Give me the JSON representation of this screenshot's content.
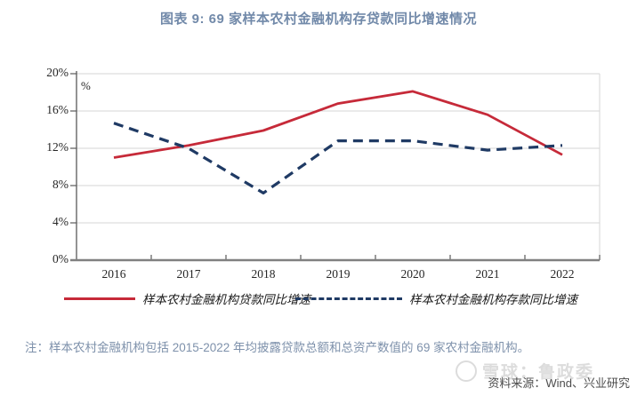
{
  "title": "图表 9: 69 家样本农村金融机构存贷款同比增速情况",
  "chart_data": {
    "type": "line",
    "title": "图表 9: 69 家样本农村金融机构存贷款同比增速情况",
    "categories": [
      "2016",
      "2017",
      "2018",
      "2019",
      "2020",
      "2021",
      "2022"
    ],
    "series": [
      {
        "name": "样本农村金融机构贷款同比增速",
        "style": "solid",
        "color": "#c62a39",
        "values": [
          11.0,
          12.3,
          13.9,
          16.8,
          18.1,
          15.6,
          11.3
        ]
      },
      {
        "name": "样本农村金融机构存款同比增速",
        "style": "dashed",
        "color": "#1f3a64",
        "values": [
          14.7,
          12.0,
          7.2,
          12.8,
          12.8,
          11.8,
          12.3
        ]
      }
    ],
    "xlabel": "",
    "ylabel": "%",
    "ylim": [
      0,
      20
    ],
    "yticks": [
      "0%",
      "4%",
      "8%",
      "12%",
      "16%",
      "20%"
    ],
    "grid": true,
    "legend_position": "bottom"
  },
  "note": "注：样本农村金融机构包括 2015-2022 年均披露贷款总额和总资产数值的 69 家农村金融机构。",
  "source": "资料来源：Wind、兴业研究",
  "watermark": "雪球：鲁政委"
}
